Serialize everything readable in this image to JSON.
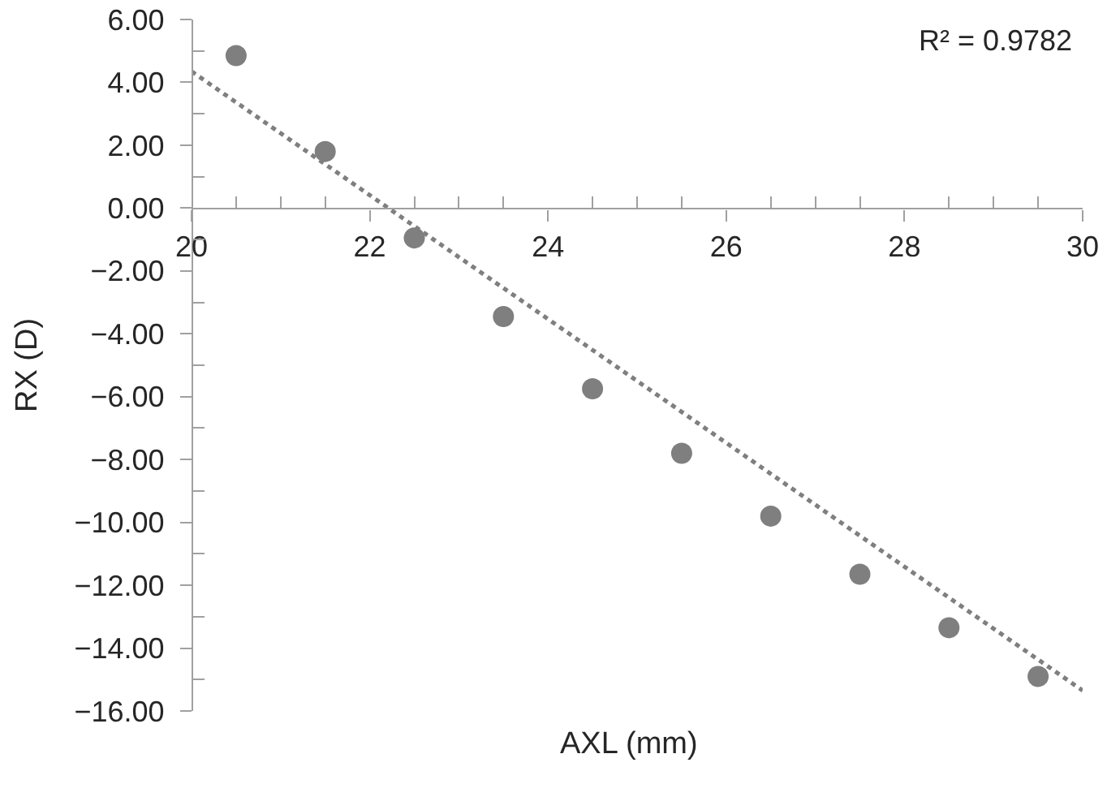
{
  "chart_data": {
    "type": "scatter",
    "xlabel": "AXL (mm)",
    "ylabel": "RX (D)",
    "annotations": [
      "R² = 0.9782"
    ],
    "xlim": [
      20,
      30
    ],
    "xticks": [
      20,
      {
        "value": 20.5,
        "label": null
      },
      {
        "value": 21,
        "label": null
      },
      {
        "value": 21.5,
        "label": null
      },
      22,
      {
        "value": 22.5,
        "label": null
      },
      {
        "value": 23,
        "label": null
      },
      {
        "value": 23.5,
        "label": null
      },
      24,
      {
        "value": 24.5,
        "label": null
      },
      {
        "value": 25,
        "label": null
      },
      {
        "value": 25.5,
        "label": null
      },
      26,
      {
        "value": 26.5,
        "label": null
      },
      {
        "value": 27,
        "label": null
      },
      {
        "value": 27.5,
        "label": null
      },
      28,
      {
        "value": 28.5,
        "label": null
      },
      {
        "value": 29,
        "label": null
      },
      {
        "value": 29.5,
        "label": null
      },
      30
    ],
    "ylim": [
      -16,
      6
    ],
    "yticks": [
      {
        "value": 6,
        "label": "6.00"
      },
      {
        "value": 5,
        "label": null
      },
      {
        "value": 4,
        "label": "4.00"
      },
      {
        "value": 3,
        "label": null
      },
      {
        "value": 2,
        "label": "2.00"
      },
      {
        "value": 1,
        "label": null
      },
      {
        "value": 0,
        "label": "0.00"
      },
      {
        "value": -1,
        "label": null
      },
      {
        "value": -2,
        "label": "−2.00"
      },
      {
        "value": -3,
        "label": null
      },
      {
        "value": -4,
        "label": "−4.00"
      },
      {
        "value": -5,
        "label": null
      },
      {
        "value": -6,
        "label": "−6.00"
      },
      {
        "value": -7,
        "label": null
      },
      {
        "value": -8,
        "label": "−8.00"
      },
      {
        "value": -9,
        "label": null
      },
      {
        "value": -10,
        "label": "−10.00"
      },
      {
        "value": -11,
        "label": null
      },
      {
        "value": -12,
        "label": "−12.00"
      },
      {
        "value": -13,
        "label": null
      },
      {
        "value": -14,
        "label": "−14.00"
      },
      {
        "value": -15,
        "label": null
      },
      {
        "value": -16,
        "label": "−16.00"
      }
    ],
    "marker": "circle",
    "series": [
      {
        "color": "#7f7f7f",
        "x": [
          20.5,
          21.5,
          22.5,
          23.5,
          24.5,
          25.5,
          26.5,
          27.5,
          28.5,
          29.5
        ],
        "values": [
          4.85,
          1.8,
          -0.95,
          -3.45,
          -5.75,
          -7.8,
          -9.8,
          -11.65,
          -13.35,
          -14.9
        ]
      },
      {
        "type": "line",
        "color": "#7f7f7f",
        "x": [
          20,
          30
        ],
        "values": [
          4.35,
          -15.35
        ],
        "line_style": "dotted",
        "marker": "none"
      }
    ]
  }
}
